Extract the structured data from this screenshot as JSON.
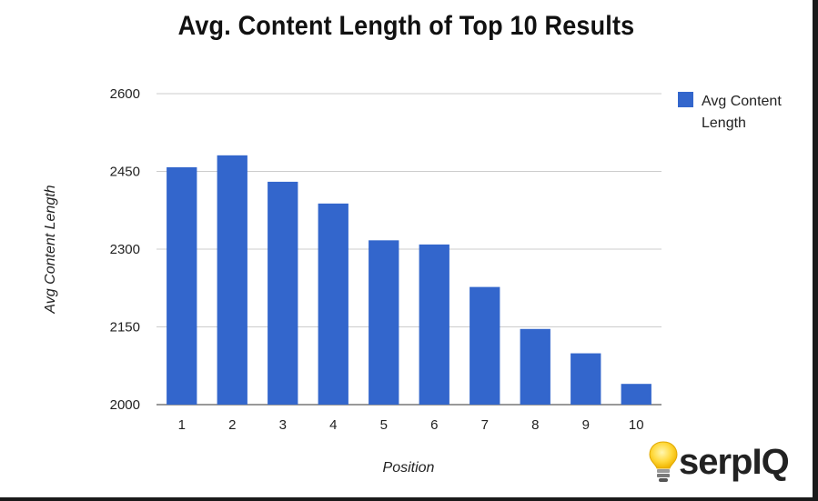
{
  "chart_data": {
    "type": "bar",
    "title": "Avg. Content Length of Top 10 Results",
    "xlabel": "Position",
    "ylabel": "Avg Content Length",
    "categories": [
      "1",
      "2",
      "3",
      "4",
      "5",
      "6",
      "7",
      "8",
      "9",
      "10"
    ],
    "series": [
      {
        "name": "Avg Content Length",
        "values": [
          2458,
          2481,
          2430,
          2388,
          2317,
          2309,
          2227,
          2146,
          2099,
          2040
        ]
      }
    ],
    "ylim": [
      2000,
      2600
    ],
    "yticks": [
      2000,
      2150,
      2300,
      2450,
      2600
    ],
    "legend_lines": [
      "Avg Content",
      "Length"
    ],
    "legend_position": "top-right",
    "grid": true,
    "bar_color": "#3366cc"
  },
  "logo": {
    "text": "serpIQ"
  }
}
